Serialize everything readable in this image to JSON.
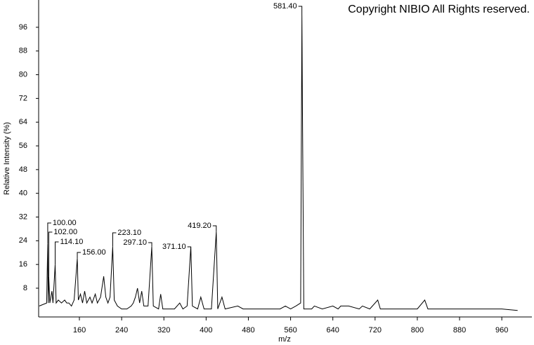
{
  "chart_data": {
    "type": "line",
    "copyright": "Copyright NIBIO All Rights reserved.",
    "x_label": "m/z",
    "y_label": "Relative Intensity (%)",
    "xlim": [
      82.8,
      1017
    ],
    "ylim": [
      -1.7,
      105.2
    ],
    "xticks": [
      160,
      240,
      320,
      400,
      480,
      560,
      640,
      720,
      800,
      880,
      960
    ],
    "yticks": [
      8,
      16,
      24,
      32,
      40,
      48,
      56,
      64,
      72,
      80,
      88,
      96
    ],
    "color": "#000000",
    "x": [
      84,
      98,
      100,
      101,
      102,
      104,
      108,
      110,
      114.1,
      116,
      120,
      126,
      132,
      136,
      140,
      145,
      150,
      156,
      158,
      162,
      166,
      170,
      174,
      180,
      184,
      190,
      194,
      200,
      206,
      210,
      214,
      218,
      223.1,
      226,
      232,
      240,
      250,
      258,
      262,
      266,
      270,
      274,
      278,
      282,
      290,
      297.1,
      300,
      310,
      314,
      318,
      330,
      340,
      350,
      356,
      364,
      371.1,
      374,
      384,
      390,
      396,
      410,
      419.2,
      422,
      430,
      436,
      460,
      470,
      500,
      540,
      550,
      560,
      570,
      579,
      581.4,
      582.4,
      585,
      600,
      605,
      620,
      640,
      650,
      655,
      670,
      690,
      696,
      710,
      725,
      730,
      760,
      800,
      814,
      820,
      860,
      876,
      900,
      960,
      990
    ],
    "values": [
      2,
      3,
      23,
      3,
      12,
      3,
      7,
      3,
      16,
      3,
      4,
      3,
      4,
      3,
      3,
      2,
      4,
      18,
      4,
      6,
      3,
      7,
      3,
      5,
      3,
      6,
      3,
      5,
      12,
      5,
      3,
      5,
      22,
      4,
      2,
      1,
      1,
      2,
      3,
      5,
      8,
      3,
      7,
      2,
      2,
      22,
      2,
      1,
      6,
      1,
      1,
      1,
      3,
      1,
      2,
      22,
      2,
      1,
      5,
      1,
      1,
      27,
      1,
      5,
      1,
      2,
      1,
      1,
      1,
      2,
      1,
      2,
      3,
      100,
      70,
      1,
      1,
      2,
      1,
      2,
      1,
      2,
      2,
      1,
      2,
      1,
      4,
      1,
      1,
      1,
      4,
      1,
      1,
      1,
      1,
      1,
      0.5
    ],
    "annotations": [
      {
        "label": "100.00",
        "x": 100,
        "y": 23
      },
      {
        "label": "102.00",
        "x": 102,
        "y": 12
      },
      {
        "label": "114.10",
        "x": 114.1,
        "y": 16
      },
      {
        "label": "156.00",
        "x": 156,
        "y": 18
      },
      {
        "label": "223.10",
        "x": 223.1,
        "y": 22
      },
      {
        "label": "297.10",
        "x": 297.1,
        "y": 22
      },
      {
        "label": "371.10",
        "x": 371.1,
        "y": 22
      },
      {
        "label": "419.20",
        "x": 419.2,
        "y": 27
      },
      {
        "label": "581.40",
        "x": 581.4,
        "y": 100
      }
    ]
  }
}
